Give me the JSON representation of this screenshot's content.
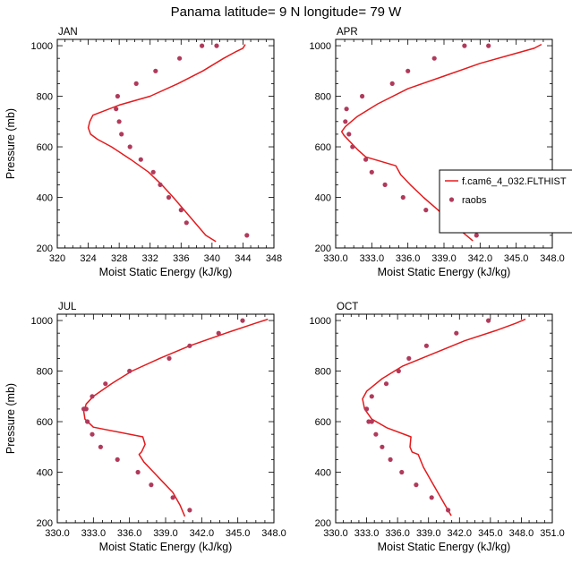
{
  "figure_title": "Panama  latitude= 9 N longitude= 79 W",
  "legend": {
    "model_label": "f.cam6_4_032.FLTHIST",
    "obs_label": "raobs",
    "model_color": "#e41a1c",
    "obs_color": "#b03a5b"
  },
  "chart_data": [
    {
      "type": "line",
      "panel": "JAN",
      "xlabel": "Moist Static Energy (kJ/kg)",
      "ylabel": "Pressure (mb)",
      "xlim": [
        320,
        348
      ],
      "ylim": [
        1025,
        200
      ],
      "xticks": [
        320,
        324,
        328,
        332,
        336,
        340,
        344,
        348
      ],
      "xticklabels": [
        "320",
        "324",
        "328",
        "332",
        "336",
        "340",
        "344",
        "348"
      ],
      "yticks": [
        200,
        400,
        600,
        800,
        1000
      ],
      "yticklabels": [
        "200",
        "400",
        "600",
        "800",
        "1000"
      ],
      "model": {
        "x": [
          340.5,
          339.2,
          337.8,
          336.4,
          335.0,
          333.5,
          331.8,
          329.5,
          327.0,
          325.2,
          324.3,
          324.0,
          324.2,
          324.6,
          328.0,
          332.0,
          335.6,
          338.8,
          341.5,
          343.0,
          344.0,
          344.3
        ],
        "y": [
          225,
          250,
          300,
          350,
          400,
          450,
          500,
          550,
          600,
          630,
          650,
          675,
          700,
          725,
          765,
          800,
          850,
          900,
          950,
          975,
          990,
          1005
        ]
      },
      "obs": {
        "x": [
          344.5,
          336.7,
          336.0,
          334.4,
          333.3,
          332.4,
          330.8,
          329.4,
          328.3,
          328.0,
          327.6,
          327.8,
          330.2,
          332.7,
          335.8,
          338.7,
          340.6
        ],
        "y": [
          250,
          300,
          350,
          400,
          450,
          500,
          550,
          600,
          650,
          700,
          750,
          800,
          850,
          900,
          950,
          1000,
          1000
        ]
      }
    },
    {
      "type": "line",
      "panel": "APR",
      "xlabel": "Moist Static Energy (kJ/kg)",
      "ylabel": "",
      "xlim": [
        330,
        348
      ],
      "ylim": [
        1025,
        200
      ],
      "xticks": [
        330,
        333,
        336,
        339,
        342,
        345,
        348
      ],
      "xticklabels": [
        "330.0",
        "333.0",
        "336.0",
        "339.0",
        "342.0",
        "345.0",
        "348.0"
      ],
      "yticks": [
        200,
        400,
        600,
        800,
        1000
      ],
      "yticklabels": [
        "200",
        "400",
        "600",
        "800",
        "1000"
      ],
      "model": {
        "x": [
          341.4,
          340.6,
          339.6,
          338.5,
          337.3,
          336.2,
          335.4,
          335.0,
          332.5,
          331.8,
          331.2,
          330.7,
          330.5,
          330.8,
          331.8,
          333.5,
          336.0,
          339.0,
          342.0,
          345.0,
          346.5,
          347.1
        ],
        "y": [
          228,
          260,
          300,
          350,
          400,
          450,
          490,
          525,
          560,
          590,
          620,
          645,
          660,
          680,
          720,
          770,
          830,
          880,
          930,
          970,
          990,
          1005
        ]
      },
      "obs": {
        "x": [
          341.7,
          339.2,
          337.5,
          335.6,
          334.1,
          333.0,
          332.5,
          331.4,
          331.1,
          330.8,
          330.9,
          332.2,
          334.7,
          336.0,
          338.2,
          340.7,
          342.7
        ],
        "y": [
          250,
          300,
          350,
          400,
          450,
          500,
          550,
          600,
          650,
          700,
          750,
          800,
          850,
          900,
          950,
          1000,
          1000
        ]
      }
    },
    {
      "type": "line",
      "panel": "JUL",
      "xlabel": "Moist Static Energy (kJ/kg)",
      "ylabel": "Pressure (mb)",
      "xlim": [
        330,
        348
      ],
      "ylim": [
        1025,
        200
      ],
      "xticks": [
        330,
        333,
        336,
        339,
        342,
        345,
        348
      ],
      "xticklabels": [
        "330.0",
        "333.0",
        "336.0",
        "339.0",
        "342.0",
        "345.0",
        "348.0"
      ],
      "yticks": [
        200,
        400,
        600,
        800,
        1000
      ],
      "yticklabels": [
        "200",
        "400",
        "600",
        "800",
        "1000"
      ],
      "model": {
        "x": [
          340.6,
          340.2,
          339.6,
          338.8,
          338.0,
          337.2,
          336.8,
          337.0,
          337.3,
          337.1,
          333.0,
          332.3,
          332.2,
          332.4,
          333.0,
          334.5,
          336.2,
          338.5,
          341.0,
          344.0,
          346.5,
          347.5
        ],
        "y": [
          225,
          270,
          320,
          360,
          400,
          440,
          470,
          480,
          510,
          540,
          578,
          610,
          640,
          670,
          700,
          750,
          800,
          850,
          900,
          950,
          990,
          1005
        ]
      },
      "obs": {
        "x": [
          341.0,
          339.6,
          337.8,
          336.7,
          335.0,
          333.6,
          332.9,
          332.5,
          332.2,
          332.4,
          332.9,
          334.0,
          336.0,
          339.3,
          341.0,
          343.4,
          345.4
        ],
        "y": [
          250,
          300,
          350,
          400,
          450,
          500,
          550,
          600,
          650,
          650,
          700,
          750,
          800,
          850,
          900,
          950,
          1000
        ]
      }
    },
    {
      "type": "line",
      "panel": "OCT",
      "xlabel": "Moist Static Energy (kJ/kg)",
      "ylabel": "",
      "xlim": [
        330,
        351
      ],
      "ylim": [
        1025,
        200
      ],
      "xticks": [
        330,
        333,
        336,
        339,
        342,
        345,
        348,
        351
      ],
      "xticklabels": [
        "330.0",
        "333.0",
        "336.0",
        "339.0",
        "342.0",
        "345.0",
        "348.0",
        "351.0"
      ],
      "yticks": [
        200,
        400,
        600,
        800,
        1000
      ],
      "yticklabels": [
        "200",
        "400",
        "600",
        "800",
        "1000"
      ],
      "model": {
        "x": [
          341.2,
          340.6,
          339.9,
          339.2,
          338.5,
          338.0,
          337.4,
          337.2,
          337.3,
          335.0,
          333.5,
          332.8,
          332.6,
          333.0,
          334.5,
          336.5,
          339.5,
          342.5,
          345.5,
          347.5,
          348.4
        ],
        "y": [
          228,
          270,
          320,
          370,
          420,
          470,
          480,
          500,
          540,
          575,
          610,
          650,
          690,
          720,
          770,
          820,
          870,
          920,
          960,
          990,
          1005
        ]
      },
      "obs": {
        "x": [
          340.9,
          339.3,
          337.8,
          336.4,
          335.3,
          334.5,
          333.9,
          333.5,
          333.2,
          333.0,
          333.5,
          334.9,
          336.1,
          337.1,
          338.8,
          341.7,
          344.8
        ],
        "y": [
          250,
          300,
          350,
          400,
          450,
          500,
          550,
          600,
          600,
          650,
          700,
          750,
          800,
          850,
          900,
          950,
          1000
        ]
      }
    }
  ]
}
